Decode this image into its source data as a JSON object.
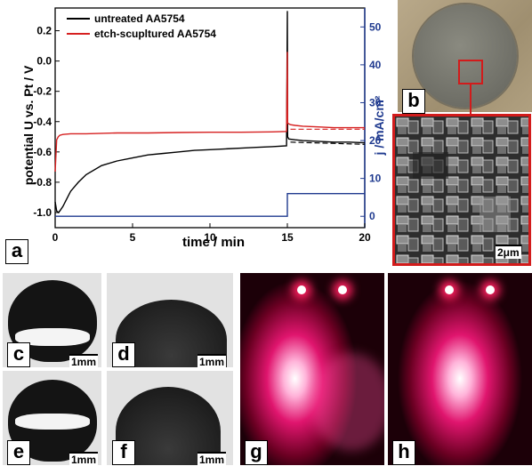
{
  "panels": {
    "a": "a",
    "b": "b",
    "c": "c",
    "d": "d",
    "e": "e",
    "f": "f",
    "g": "g",
    "h": "h"
  },
  "scalebars": {
    "sem": "2μm",
    "c": "1mm",
    "d": "1mm",
    "e": "1mm",
    "f": "1mm"
  },
  "colors": {
    "untreated": "#000000",
    "etched": "#d62020",
    "current": "#1f3a8f",
    "sem_frame": "#d21b1b"
  },
  "chart_data": {
    "type": "line",
    "xlabel": "time / min",
    "ylabel_left": "potential U vs. Pt / V",
    "ylabel_right": "j / mA/cm²",
    "xlim": [
      0,
      20
    ],
    "ylim_left": [
      -1.1,
      0.35
    ],
    "ylim_right": [
      -3,
      55
    ],
    "x_ticks": [
      "0",
      "5",
      "10",
      "15",
      "20"
    ],
    "y_ticks_left": [
      "0.2",
      "0.0",
      "-0.2",
      "-0.4",
      "-0.6",
      "-0.8",
      "-1.0"
    ],
    "y_ticks_right": [
      "0",
      "10",
      "20",
      "30",
      "40",
      "50"
    ],
    "legend": [
      "untreated AA5754",
      "etch-scupltured AA5754"
    ],
    "legend_position": "top-left",
    "series": [
      {
        "name": "untreated AA5754",
        "axis": "left",
        "x": [
          0,
          0.1,
          0.2,
          0.3,
          0.5,
          0.8,
          1.0,
          1.5,
          2,
          3,
          4,
          5,
          6,
          7,
          8,
          9,
          10,
          11,
          12,
          13,
          14,
          14.95,
          15.0,
          15.02,
          15.1,
          15.5,
          16,
          17,
          18,
          19,
          20
        ],
        "y": [
          -0.93,
          -0.99,
          -1.0,
          -0.99,
          -0.96,
          -0.9,
          -0.86,
          -0.8,
          -0.75,
          -0.69,
          -0.66,
          -0.64,
          -0.62,
          -0.61,
          -0.6,
          -0.59,
          -0.585,
          -0.58,
          -0.575,
          -0.57,
          -0.565,
          -0.56,
          0.33,
          -0.5,
          -0.515,
          -0.52,
          -0.525,
          -0.53,
          -0.535,
          -0.535,
          -0.54
        ]
      },
      {
        "name": "etch-scupltured AA5754",
        "axis": "left",
        "x": [
          0,
          0.1,
          0.2,
          0.3,
          0.5,
          1,
          2,
          4,
          6,
          8,
          10,
          12,
          14,
          14.95,
          15.0,
          15.02,
          15.2,
          15.5,
          16,
          17,
          18,
          19,
          20
        ],
        "y": [
          -0.73,
          -0.52,
          -0.5,
          -0.49,
          -0.485,
          -0.48,
          -0.48,
          -0.475,
          -0.475,
          -0.472,
          -0.47,
          -0.47,
          -0.468,
          -0.465,
          0.06,
          -0.41,
          -0.42,
          -0.425,
          -0.43,
          -0.435,
          -0.44,
          -0.44,
          -0.44
        ]
      },
      {
        "name": "current density",
        "axis": "right",
        "x": [
          0,
          15,
          15,
          20
        ],
        "y": [
          0,
          0,
          6,
          6
        ]
      }
    ],
    "dashed_extrapolations": [
      {
        "series": "untreated AA5754",
        "x": [
          15.2,
          20
        ],
        "y": [
          -0.535,
          -0.55
        ]
      },
      {
        "series": "etch-scupltured AA5754",
        "x": [
          15.2,
          20
        ],
        "y": [
          -0.45,
          -0.45
        ]
      }
    ]
  }
}
